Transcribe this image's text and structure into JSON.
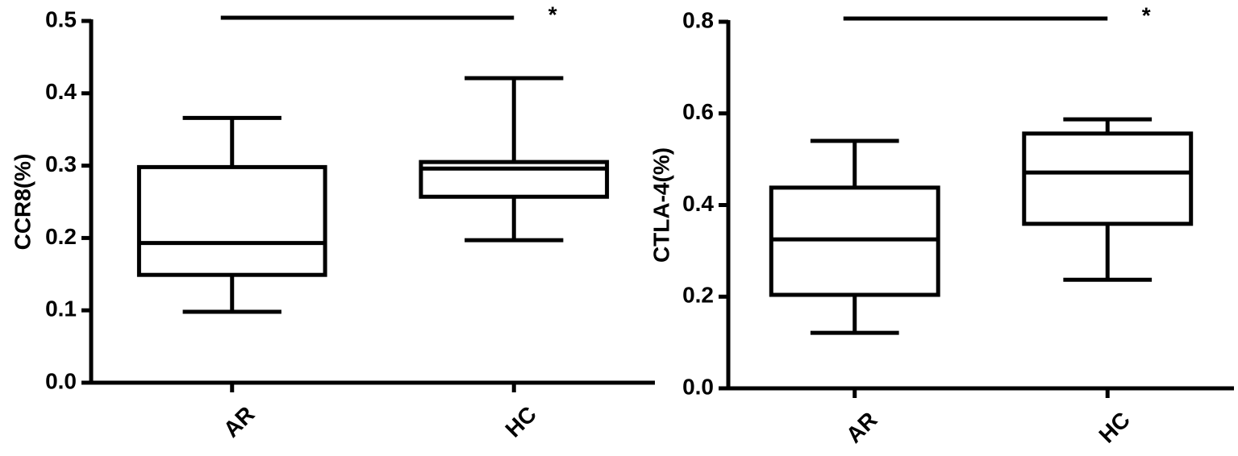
{
  "chart_data": [
    {
      "type": "box",
      "y_label": "CCR8(%)",
      "annotation": "*",
      "categories": [
        "AR",
        "HC"
      ],
      "min": [
        0.098,
        0.197
      ],
      "q1": [
        0.149,
        0.257
      ],
      "median": [
        0.193,
        0.296
      ],
      "q3": [
        0.298,
        0.305
      ],
      "max": [
        0.366,
        0.421
      ],
      "color": "#000000",
      "ylim": [
        0,
        0.5
      ],
      "yticks": [
        {
          "value": 0,
          "label": "0.0"
        },
        0.1,
        0.2,
        0.3,
        0.4,
        0.5
      ]
    },
    {
      "type": "box",
      "y_label": "CTLA-4(%)",
      "annotation": "*",
      "categories": [
        "AR",
        "HC"
      ],
      "min": [
        0.121,
        0.237
      ],
      "q1": [
        0.204,
        0.359
      ],
      "median": [
        0.325,
        0.471
      ],
      "q3": [
        0.438,
        0.556
      ],
      "max": [
        0.54,
        0.587
      ],
      "color": "#000000",
      "ylim": [
        0,
        0.8
      ],
      "yticks": [
        {
          "value": 0,
          "label": "0.0"
        },
        0.2,
        0.4,
        0.6,
        0.8
      ]
    }
  ]
}
